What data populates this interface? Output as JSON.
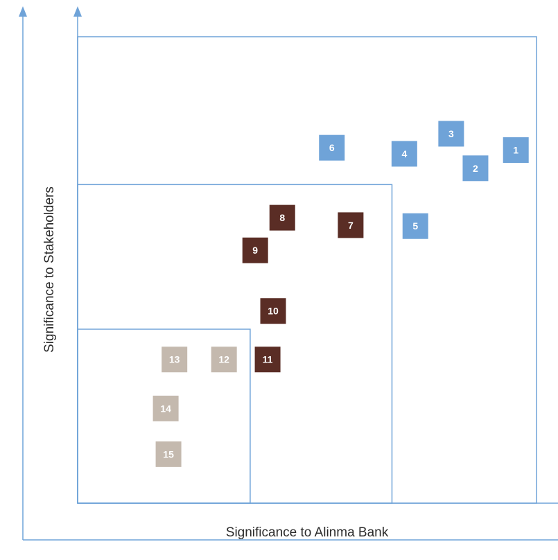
{
  "chart_data": {
    "type": "scatter",
    "title": "",
    "xlabel": "Significance to Alinma Bank",
    "ylabel": "Significance to Stakeholders",
    "xlim": [
      0,
      100
    ],
    "ylim": [
      0,
      100
    ],
    "grid": false,
    "zones": [
      {
        "x_max": 100,
        "y_max": 100
      },
      {
        "x_max": 68.5,
        "y_max": 68.3
      },
      {
        "x_max": 37.6,
        "y_max": 37.3
      }
    ],
    "colors": {
      "axis": "#6fa3d8",
      "high": "#6fa3d8",
      "medium": "#5a2d25",
      "low": "#c4b9ae"
    },
    "series": [
      {
        "tier": "high",
        "points": [
          {
            "label": "1",
            "x": 95.5,
            "y": 75.7
          },
          {
            "label": "2",
            "x": 86.7,
            "y": 71.8
          },
          {
            "label": "3",
            "x": 81.4,
            "y": 79.2
          },
          {
            "label": "4",
            "x": 71.2,
            "y": 74.9
          },
          {
            "label": "5",
            "x": 73.6,
            "y": 59.4
          },
          {
            "label": "6",
            "x": 55.4,
            "y": 76.2
          }
        ]
      },
      {
        "tier": "medium",
        "points": [
          {
            "label": "7",
            "x": 59.5,
            "y": 59.6
          },
          {
            "label": "8",
            "x": 44.6,
            "y": 61.2
          },
          {
            "label": "9",
            "x": 38.7,
            "y": 54.2
          },
          {
            "label": "10",
            "x": 42.6,
            "y": 41.2
          },
          {
            "label": "11",
            "x": 41.4,
            "y": 30.8
          }
        ]
      },
      {
        "tier": "low",
        "points": [
          {
            "label": "12",
            "x": 31.9,
            "y": 30.8
          },
          {
            "label": "13",
            "x": 21.1,
            "y": 30.8
          },
          {
            "label": "14",
            "x": 19.2,
            "y": 20.3
          },
          {
            "label": "15",
            "x": 19.8,
            "y": 10.5
          }
        ]
      }
    ]
  }
}
